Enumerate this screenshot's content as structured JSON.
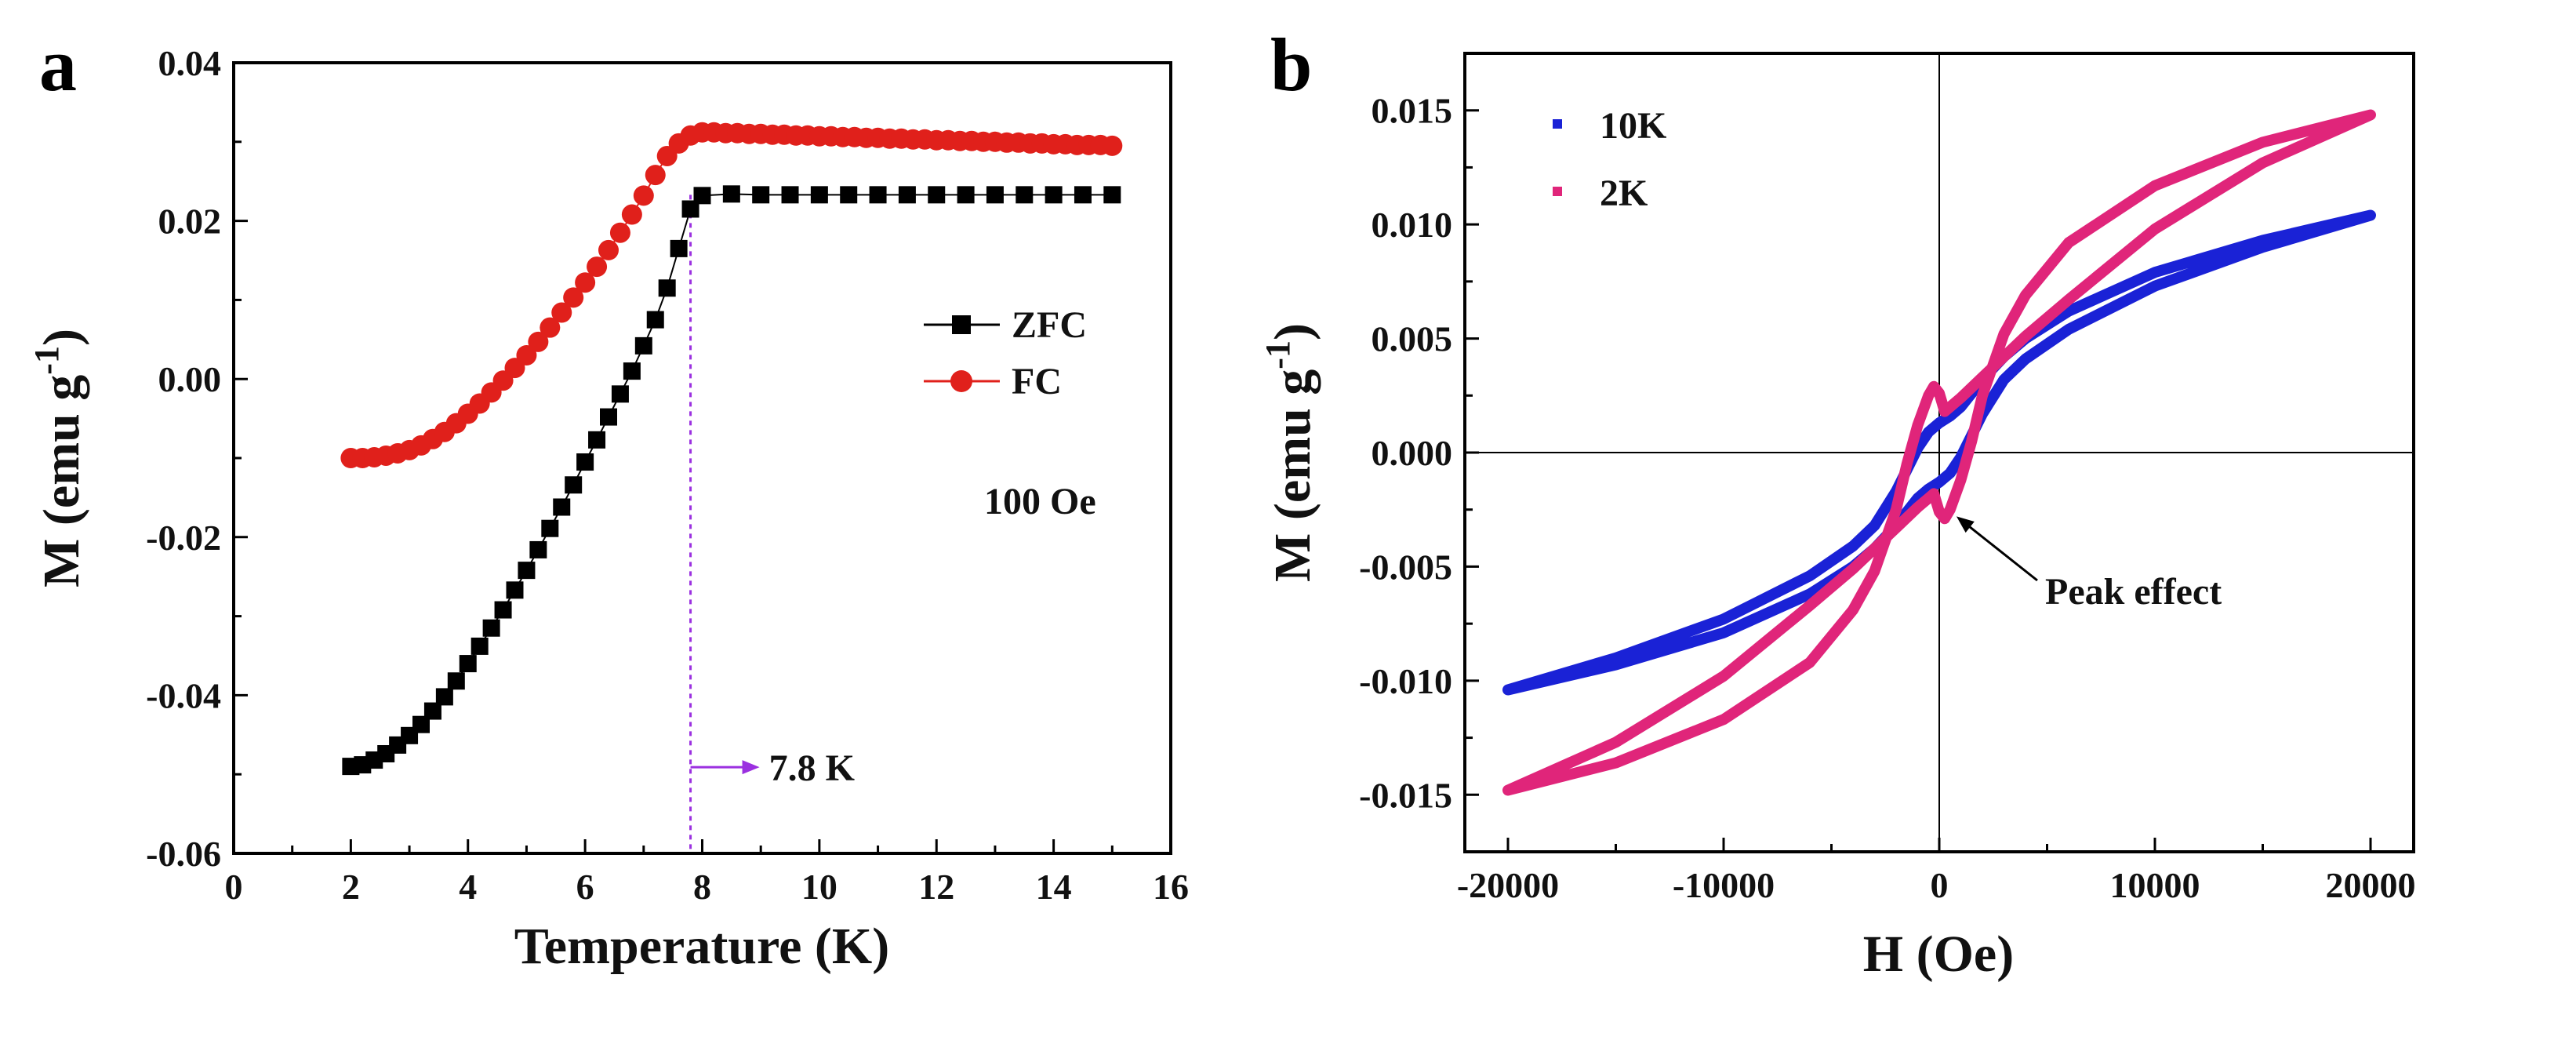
{
  "chart_data": [
    {
      "panel_label": "a",
      "type": "scatter",
      "title": "",
      "xlabel": "Temperature (K)",
      "ylabel_main": "M (emu g",
      "ylabel_sup": "-1",
      "ylabel_close": ")",
      "xlim": [
        0,
        16
      ],
      "ylim": [
        -0.06,
        0.04
      ],
      "x_ticks": [
        0,
        2,
        4,
        6,
        8,
        10,
        12,
        14,
        16
      ],
      "x_tick_labels": [
        "0",
        "2",
        "4",
        "6",
        "8",
        "10",
        "12",
        "14",
        "16"
      ],
      "y_ticks": [
        -0.06,
        -0.04,
        -0.02,
        0.0,
        0.02,
        0.04
      ],
      "y_tick_labels": [
        "-0.06",
        "-0.04",
        "-0.02",
        "0.00",
        "0.02",
        "0.04"
      ],
      "legend_position": "right",
      "series": [
        {
          "name": "ZFC",
          "color": "#000000",
          "marker": "square",
          "x": [
            2.0,
            2.2,
            2.4,
            2.6,
            2.8,
            3.0,
            3.2,
            3.4,
            3.6,
            3.8,
            4.0,
            4.2,
            4.4,
            4.6,
            4.8,
            5.0,
            5.2,
            5.4,
            5.6,
            5.8,
            6.0,
            6.2,
            6.4,
            6.6,
            6.8,
            7.0,
            7.2,
            7.4,
            7.6,
            7.8,
            8.0,
            8.5,
            9.0,
            9.5,
            10.0,
            10.5,
            11.0,
            11.5,
            12.0,
            12.5,
            13.0,
            13.5,
            14.0,
            14.5,
            15.0
          ],
          "y": [
            -0.049,
            -0.0488,
            -0.0482,
            -0.0474,
            -0.0463,
            -0.0451,
            -0.0437,
            -0.042,
            -0.0402,
            -0.0382,
            -0.036,
            -0.0338,
            -0.0315,
            -0.0292,
            -0.0267,
            -0.0242,
            -0.0216,
            -0.0189,
            -0.0162,
            -0.0134,
            -0.0105,
            -0.0077,
            -0.0048,
            -0.0019,
            0.001,
            0.0042,
            0.0075,
            0.0115,
            0.0165,
            0.0215,
            0.0232,
            0.0234,
            0.0233,
            0.0233,
            0.0233,
            0.0233,
            0.0233,
            0.0233,
            0.0233,
            0.0233,
            0.0233,
            0.0233,
            0.0233,
            0.0233,
            0.0233
          ]
        },
        {
          "name": "FC",
          "color": "#e0201b",
          "marker": "circle",
          "x": [
            2.0,
            2.2,
            2.4,
            2.6,
            2.8,
            3.0,
            3.2,
            3.4,
            3.6,
            3.8,
            4.0,
            4.2,
            4.4,
            4.6,
            4.8,
            5.0,
            5.2,
            5.4,
            5.6,
            5.8,
            6.0,
            6.2,
            6.4,
            6.6,
            6.8,
            7.0,
            7.2,
            7.4,
            7.6,
            7.8,
            8.0,
            8.2,
            8.4,
            8.6,
            8.8,
            9.0,
            9.2,
            9.4,
            9.6,
            9.8,
            10.0,
            10.2,
            10.4,
            10.6,
            10.8,
            11.0,
            11.2,
            11.4,
            11.6,
            11.8,
            12.0,
            12.2,
            12.4,
            12.6,
            12.8,
            13.0,
            13.2,
            13.4,
            13.6,
            13.8,
            14.0,
            14.2,
            14.4,
            14.6,
            14.8,
            15.0
          ],
          "y": [
            -0.01,
            -0.01,
            -0.0099,
            -0.0097,
            -0.0094,
            -0.009,
            -0.0084,
            -0.0076,
            -0.0067,
            -0.0056,
            -0.0044,
            -0.0031,
            -0.0017,
            -0.0002,
            0.0014,
            0.003,
            0.0047,
            0.0065,
            0.0084,
            0.0103,
            0.0122,
            0.0142,
            0.0163,
            0.0185,
            0.0208,
            0.0232,
            0.0258,
            0.0282,
            0.0298,
            0.0308,
            0.0312,
            0.0312,
            0.0311,
            0.0311,
            0.031,
            0.031,
            0.0309,
            0.0309,
            0.0308,
            0.0308,
            0.0307,
            0.0307,
            0.0306,
            0.0306,
            0.0305,
            0.0305,
            0.0304,
            0.0304,
            0.0303,
            0.0303,
            0.0302,
            0.0302,
            0.0301,
            0.0301,
            0.03,
            0.03,
            0.0299,
            0.0299,
            0.0298,
            0.0298,
            0.0297,
            0.0297,
            0.0296,
            0.0296,
            0.0296,
            0.0295
          ]
        }
      ],
      "annotations": {
        "field": "100 Oe",
        "tc_label": "7.8 K",
        "tc_value": 7.8,
        "tc_color": "#9b30e0"
      }
    },
    {
      "panel_label": "b",
      "type": "line",
      "title": "",
      "xlabel": "H (Oe)",
      "ylabel_main": "M (emu g",
      "ylabel_sup": "-1",
      "ylabel_close": ")",
      "xlim": [
        -22000,
        22000
      ],
      "ylim": [
        -0.0175,
        0.0175
      ],
      "x_ticks": [
        -20000,
        -10000,
        0,
        10000,
        20000
      ],
      "x_tick_labels": [
        "-20000",
        "-10000",
        "0",
        "10000",
        "20000"
      ],
      "y_ticks": [
        -0.015,
        -0.01,
        -0.005,
        0.0,
        0.005,
        0.01,
        0.015
      ],
      "y_tick_labels": [
        "-0.015",
        "-0.010",
        "-0.005",
        "0.000",
        "0.005",
        "0.010",
        "0.015"
      ],
      "legend_position": "top-left",
      "series": [
        {
          "name": "10K",
          "color": "#1a22d6",
          "x": [
            -20000,
            -15000,
            -10000,
            -6000,
            -4000,
            -3000,
            -2000,
            -1500,
            -1000,
            -500,
            0,
            500,
            1000,
            2000,
            3000,
            4000,
            6000,
            10000,
            15000,
            20000,
            15000,
            10000,
            6000,
            4000,
            3000,
            2000,
            1500,
            1000,
            500,
            0,
            -500,
            -1000,
            -2000,
            -3000,
            -4000,
            -6000,
            -10000,
            -15000,
            -20000
          ],
          "y": [
            -0.0104,
            -0.0093,
            -0.0079,
            -0.0062,
            -0.005,
            -0.0042,
            -0.0032,
            -0.0026,
            -0.002,
            -0.0016,
            -0.0013,
            -0.0009,
            -0.0002,
            0.0017,
            0.0032,
            0.0041,
            0.0054,
            0.0073,
            0.009,
            0.0104,
            0.0093,
            0.0079,
            0.0062,
            0.005,
            0.0042,
            0.0032,
            0.0026,
            0.002,
            0.0016,
            0.0013,
            0.0009,
            0.0002,
            -0.0017,
            -0.0032,
            -0.0041,
            -0.0054,
            -0.0073,
            -0.009,
            -0.0104
          ]
        },
        {
          "name": "2K",
          "color": "#e0257a",
          "x": [
            -20000,
            -15000,
            -10000,
            -6000,
            -4000,
            -3000,
            -2000,
            -1000,
            -500,
            -250,
            0,
            250,
            500,
            1000,
            1500,
            2000,
            3000,
            4000,
            6000,
            10000,
            15000,
            20000,
            15000,
            10000,
            6000,
            4000,
            3000,
            2000,
            1000,
            500,
            250,
            0,
            -250,
            -500,
            -1000,
            -1500,
            -2000,
            -3000,
            -4000,
            -6000,
            -10000,
            -15000,
            -20000
          ],
          "y": [
            -0.0148,
            -0.0127,
            -0.0098,
            -0.0067,
            -0.0051,
            -0.0042,
            -0.0033,
            -0.0024,
            -0.002,
            -0.0018,
            -0.0026,
            -0.0029,
            -0.0025,
            -0.0012,
            0.0005,
            0.0025,
            0.0052,
            0.0069,
            0.0092,
            0.0117,
            0.0136,
            0.0148,
            0.0127,
            0.0098,
            0.0067,
            0.0051,
            0.0042,
            0.0033,
            0.0024,
            0.002,
            0.0018,
            0.0026,
            0.0029,
            0.0025,
            0.0012,
            -0.0005,
            -0.0025,
            -0.0052,
            -0.0069,
            -0.0092,
            -0.0117,
            -0.0136,
            -0.0148
          ]
        }
      ],
      "annotations": {
        "peak_label": "Peak effect",
        "peak_x": 400,
        "peak_y": -0.0025
      }
    }
  ]
}
